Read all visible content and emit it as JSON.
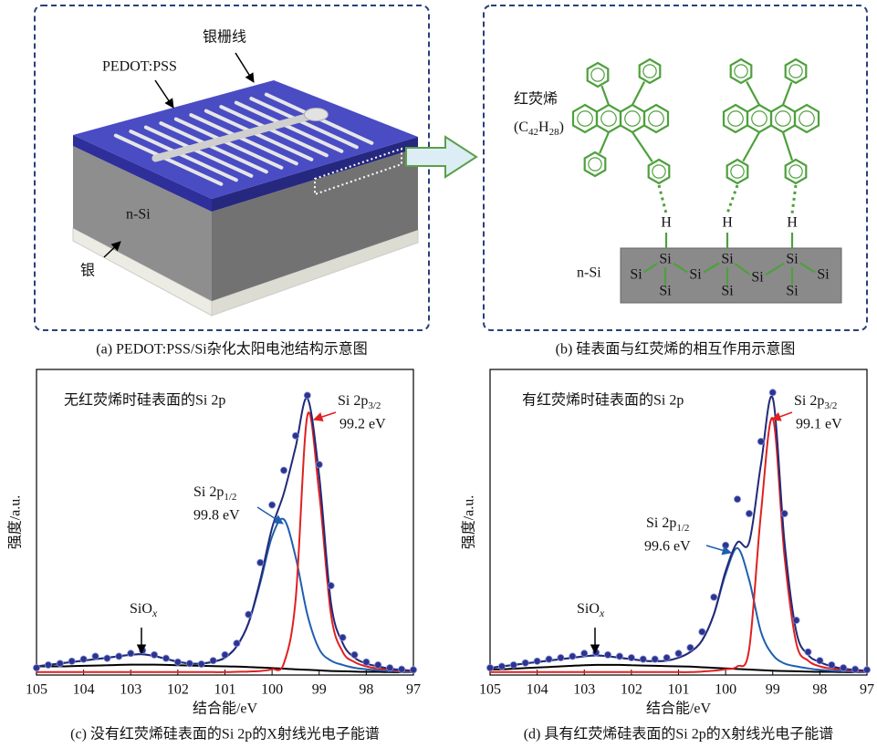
{
  "panel_a": {
    "grid_label": "银栅线",
    "pedot_label": "PEDOT:PSS",
    "nsi_label": "n-Si",
    "silver_label": "银",
    "caption": "(a) PEDOT:PSS/Si杂化太阳电池结构示意图"
  },
  "panel_b": {
    "name": "红荧烯",
    "formula": [
      "(C",
      "42",
      "H",
      "28",
      ")"
    ],
    "h_atoms": [
      "H",
      "H",
      "H"
    ],
    "si_atoms": [
      "Si",
      "Si",
      "Si",
      "Si",
      "Si",
      "Si",
      "Si",
      "Si",
      "Si",
      "Si"
    ],
    "substrate": "n-Si",
    "caption": "(b) 硅表面与红荧烯的相互作用示意图"
  },
  "chart_data": [
    {
      "type": "line",
      "note": "无红荧烯时硅表面的Si 2p",
      "caption": "(c) 没有红荧烯硅表面的Si 2p的X射线光电子能谱",
      "x_label": "结合能/eV",
      "y_label": "强度/a.u.",
      "peaks": [
        {
          "label": "Si 2p",
          "sub": "3/2",
          "energy": "99.2 eV",
          "color": "#e02020"
        },
        {
          "label": "Si 2p",
          "sub": "1/2",
          "energy": "99.8 eV",
          "color": "#1f5fb0"
        }
      ],
      "oxide": {
        "label": "SiO",
        "sub": "x"
      },
      "xlim": [
        105,
        97
      ],
      "xticks": [
        105,
        104,
        103,
        102,
        101,
        100,
        99,
        98,
        97
      ],
      "ylim": [
        -1,
        105
      ],
      "x": [
        105,
        104.75,
        104.5,
        104.25,
        104,
        103.75,
        103.5,
        103.25,
        103,
        102.75,
        102.5,
        102.25,
        102,
        101.75,
        101.5,
        101.25,
        101,
        100.75,
        100.5,
        100.25,
        100,
        99.75,
        99.5,
        99.25,
        99,
        98.75,
        98.5,
        98.25,
        98,
        97.75,
        97.5,
        97.25,
        97
      ],
      "series": [
        {
          "color": "#000000",
          "style": "line",
          "values": [
            2,
            2,
            2,
            2.1,
            2.2,
            2.3,
            2.4,
            2.5,
            2.6,
            2.6,
            2.6,
            2.5,
            2.4,
            2.3,
            2.2,
            2.1,
            2,
            1.9,
            1.8,
            1.6,
            1.4,
            1.2,
            1,
            0.8,
            0.6,
            0.4,
            0.3,
            0.2,
            0.1,
            0.1,
            0,
            0,
            0
          ]
        },
        {
          "color": "#1f5fb0",
          "style": "line",
          "values": [
            2,
            2.5,
            3,
            3.5,
            4,
            4.5,
            5,
            5.5,
            6,
            6.2,
            5.6,
            4.6,
            3.6,
            3,
            3,
            3.6,
            5,
            9,
            17,
            31,
            47,
            53,
            40,
            20,
            8,
            4,
            2.5,
            1.5,
            1,
            0.6,
            0.4,
            0.2,
            0.1
          ]
        },
        {
          "color": "#e02020",
          "style": "line",
          "values": [
            0,
            0,
            0,
            0,
            0,
            0,
            0,
            0,
            0,
            0,
            0,
            0,
            0,
            0,
            0,
            0,
            0,
            0.1,
            0.2,
            0.4,
            1,
            3,
            25,
            89,
            62,
            20,
            7,
            3.5,
            2,
            1.2,
            0.8,
            0.5,
            0.3
          ]
        },
        {
          "color": "#222a78",
          "style": "line",
          "values": [
            2,
            2.5,
            3,
            3.5,
            4,
            4.5,
            5,
            5.5,
            6,
            6.2,
            5.6,
            4.6,
            3.6,
            3,
            3,
            3.6,
            5,
            9,
            17,
            32,
            50,
            62,
            78,
            95,
            68,
            24,
            10,
            5,
            3,
            2,
            1.2,
            0.8,
            0.5
          ]
        },
        {
          "color": "#2b3590",
          "style": "markers",
          "values": [
            1.5,
            2.5,
            3,
            3.8,
            4.5,
            5.5,
            4.8,
            5.5,
            6.5,
            7.5,
            6,
            4.8,
            3.5,
            3,
            2.8,
            4,
            6,
            10,
            20,
            38,
            58,
            70,
            82,
            96,
            72,
            30,
            12,
            6,
            3.5,
            2.5,
            1.5,
            1,
            0.8
          ]
        }
      ]
    },
    {
      "type": "line",
      "note": "有红荧烯时硅表面的Si 2p",
      "caption": "(d) 具有红荧烯硅表面的Si 2p的X射线光电子能谱",
      "x_label": "结合能/eV",
      "y_label": "强度/a.u.",
      "peaks": [
        {
          "label": "Si 2p",
          "sub": "3/2",
          "energy": "99.1 eV",
          "color": "#e02020"
        },
        {
          "label": "Si 2p",
          "sub": "1/2",
          "energy": "99.6 eV",
          "color": "#1f5fb0"
        }
      ],
      "oxide": {
        "label": "SiO",
        "sub": "x"
      },
      "xlim": [
        105,
        97
      ],
      "xticks": [
        105,
        104,
        103,
        102,
        101,
        100,
        99,
        98,
        97
      ],
      "ylim": [
        -1,
        105
      ],
      "x": [
        105,
        104.75,
        104.5,
        104.25,
        104,
        103.75,
        103.5,
        103.25,
        103,
        102.75,
        102.5,
        102.25,
        102,
        101.75,
        101.5,
        101.25,
        101,
        100.75,
        100.5,
        100.25,
        100,
        99.75,
        99.5,
        99.25,
        99,
        98.75,
        98.5,
        98.25,
        98,
        97.75,
        97.5,
        97.25,
        97
      ],
      "series": [
        {
          "color": "#000000",
          "style": "line",
          "values": [
            1,
            1,
            1.2,
            1.4,
            1.6,
            1.8,
            2,
            2.2,
            2.4,
            2.5,
            2.5,
            2.5,
            2.4,
            2.3,
            2.2,
            2.1,
            2,
            1.9,
            1.7,
            1.5,
            1.3,
            1.1,
            0.9,
            0.7,
            0.5,
            0.4,
            0.3,
            0.2,
            0.1,
            0.1,
            0,
            0,
            0
          ]
        },
        {
          "color": "#1f5fb0",
          "style": "line",
          "values": [
            1.5,
            2,
            2.5,
            3,
            3.5,
            4,
            4.5,
            5,
            5.5,
            5.8,
            5.5,
            5,
            4.5,
            4,
            3.8,
            4,
            5,
            7,
            11,
            20,
            34,
            43,
            32,
            14,
            6,
            3,
            2,
            1.3,
            0.8,
            0.5,
            0.3,
            0.2,
            0.1
          ]
        },
        {
          "color": "#e02020",
          "style": "line",
          "values": [
            0,
            0,
            0,
            0,
            0,
            0,
            0,
            0,
            0,
            0,
            0,
            0,
            0,
            0,
            0,
            0,
            0,
            0,
            0.2,
            0.5,
            1,
            2,
            8,
            55,
            88,
            40,
            10,
            4,
            2,
            1.2,
            0.8,
            0.5,
            0.3
          ]
        },
        {
          "color": "#222a78",
          "style": "line",
          "values": [
            1.5,
            2,
            2.5,
            3,
            3.5,
            4,
            4.5,
            5,
            5.5,
            5.8,
            5.5,
            5,
            4.5,
            4,
            3.8,
            4,
            5,
            7,
            11,
            20,
            35,
            45,
            45,
            72,
            95,
            45,
            14,
            6,
            3.5,
            2,
            1.2,
            0.8,
            0.5
          ]
        },
        {
          "color": "#2b3590",
          "style": "markers",
          "values": [
            1.5,
            2,
            2.5,
            3.2,
            3.8,
            4.5,
            5,
            5.5,
            6.5,
            6.8,
            6,
            5.5,
            5,
            4.5,
            4.5,
            5,
            6.5,
            8.5,
            14,
            26,
            44,
            60,
            55,
            80,
            97,
            55,
            18,
            7,
            4,
            2.5,
            1.5,
            1,
            0.8
          ]
        }
      ]
    }
  ]
}
